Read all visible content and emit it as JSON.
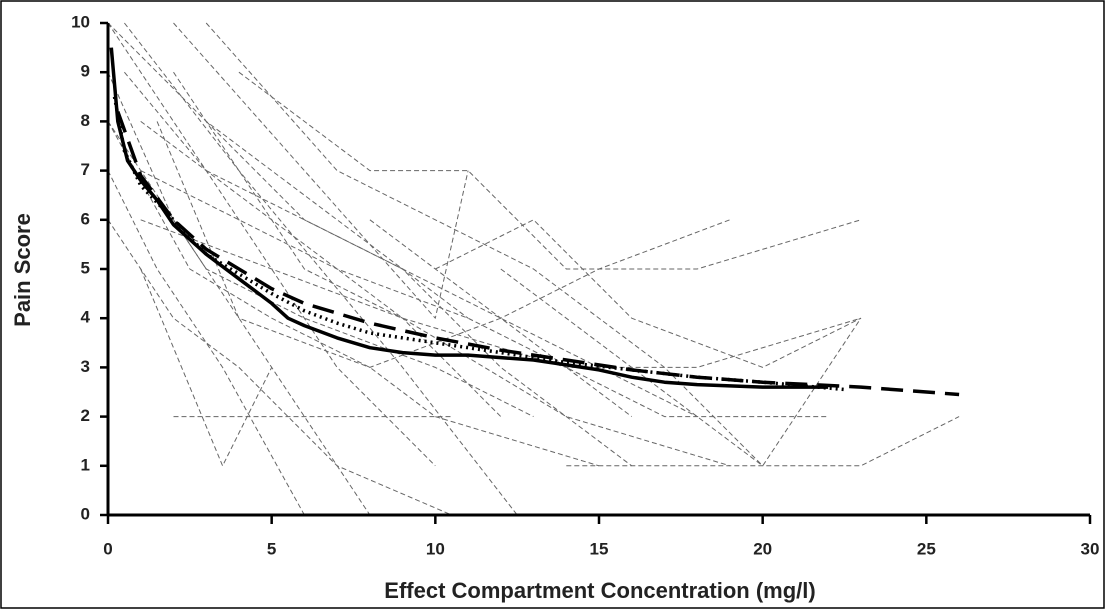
{
  "chart_data": {
    "type": "line",
    "xlabel": "Effect Compartment Concentration (mg/l)",
    "ylabel": "Pain Score",
    "xlim": [
      0,
      30
    ],
    "ylim": [
      0,
      10
    ],
    "xticks": [
      0,
      5,
      10,
      15,
      20,
      25,
      30
    ],
    "yticks": [
      0,
      1,
      2,
      3,
      4,
      5,
      6,
      7,
      8,
      9,
      10
    ],
    "grid": false,
    "series": [
      {
        "style": "dashed",
        "color": "#666666",
        "x": [
          0,
          3,
          7,
          11
        ],
        "values": [
          10,
          8,
          6,
          4
        ]
      },
      {
        "style": "dashed",
        "color": "#666666",
        "x": [
          0.5,
          4,
          9,
          12.5
        ],
        "values": [
          10,
          7,
          3,
          0
        ]
      },
      {
        "style": "dashed",
        "color": "#666666",
        "x": [
          0,
          2,
          5,
          8
        ],
        "values": [
          9,
          6,
          3,
          0
        ]
      },
      {
        "style": "dashed",
        "color": "#666666",
        "x": [
          1,
          5,
          9,
          14,
          19
        ],
        "values": [
          8,
          6,
          4,
          2,
          1
        ]
      },
      {
        "style": "dashed",
        "color": "#666666",
        "x": [
          0,
          3,
          6,
          10,
          13
        ],
        "values": [
          8,
          5,
          4,
          3,
          2
        ]
      },
      {
        "style": "dashed",
        "color": "#666666",
        "x": [
          2,
          6,
          10,
          11
        ],
        "values": [
          10,
          7,
          4,
          7
        ]
      },
      {
        "style": "dashed",
        "color": "#666666",
        "x": [
          0,
          1.5,
          3.5,
          6
        ],
        "values": [
          7,
          5,
          3,
          0
        ]
      },
      {
        "style": "dashed",
        "color": "#666666",
        "x": [
          4,
          8,
          11,
          14,
          18,
          23
        ],
        "values": [
          9,
          7,
          7,
          5,
          5,
          6
        ]
      },
      {
        "style": "dashed",
        "color": "#666666",
        "x": [
          0,
          2,
          4,
          7,
          10.5
        ],
        "values": [
          6,
          4,
          3,
          1,
          0
        ]
      },
      {
        "style": "dashed",
        "color": "#666666",
        "x": [
          1,
          3.5,
          5
        ],
        "values": [
          5,
          1,
          3
        ]
      },
      {
        "style": "dashed",
        "color": "#666666",
        "x": [
          2,
          10.5
        ],
        "values": [
          2,
          2
        ]
      },
      {
        "style": "dashed",
        "color": "#666666",
        "x": [
          14,
          18,
          23,
          26
        ],
        "values": [
          1,
          1,
          1,
          2
        ]
      },
      {
        "style": "dashed",
        "color": "#666666",
        "x": [
          10,
          13,
          16,
          20,
          23
        ],
        "values": [
          5,
          6,
          4,
          3,
          4
        ]
      },
      {
        "style": "dashed",
        "color": "#666666",
        "x": [
          8,
          12,
          15,
          19
        ],
        "values": [
          6,
          4,
          5,
          6
        ]
      },
      {
        "style": "dashed",
        "color": "#666666",
        "x": [
          3,
          6,
          9,
          12,
          15,
          18
        ],
        "values": [
          8,
          6,
          5,
          4,
          3,
          2
        ]
      },
      {
        "style": "dashed",
        "color": "#666666",
        "x": [
          1,
          4,
          7,
          11,
          14,
          17,
          22
        ],
        "values": [
          7,
          6,
          5,
          4,
          3,
          2,
          2
        ]
      },
      {
        "style": "dashed",
        "color": "#666666",
        "x": [
          0.5,
          3,
          6,
          9,
          12,
          16
        ],
        "values": [
          9,
          7,
          6,
          5,
          3,
          1
        ]
      },
      {
        "style": "dashed",
        "color": "#666666",
        "x": [
          0,
          2.5,
          5,
          8,
          10,
          15
        ],
        "values": [
          8,
          5,
          4,
          3,
          2,
          1
        ]
      },
      {
        "style": "dashed",
        "color": "#666666",
        "x": [
          12,
          16,
          20,
          23
        ],
        "values": [
          5,
          3,
          1,
          4
        ]
      },
      {
        "style": "dashed",
        "color": "#666666",
        "x": [
          2,
          4,
          6,
          9,
          12
        ],
        "values": [
          9,
          7,
          5,
          4,
          2
        ]
      },
      {
        "style": "dashed",
        "color": "#666666",
        "x": [
          0,
          4,
          7,
          10
        ],
        "values": [
          10,
          6,
          3,
          1
        ]
      },
      {
        "style": "dashed",
        "color": "#666666",
        "x": [
          1,
          5,
          9,
          14,
          18,
          23
        ],
        "values": [
          6,
          5,
          4,
          3,
          3,
          4
        ]
      },
      {
        "style": "dashed",
        "color": "#666666",
        "x": [
          3,
          7,
          10,
          13,
          17,
          20
        ],
        "values": [
          10,
          7,
          6,
          5,
          3,
          1
        ]
      },
      {
        "style": "dashed",
        "color": "#666666",
        "x": [
          1.5,
          4,
          8,
          12,
          16
        ],
        "values": [
          8,
          4,
          3,
          4,
          2
        ]
      },
      {
        "style": "solid",
        "color": "#000000",
        "x": [
          0.1,
          0.3,
          0.6,
          1,
          1.5,
          2,
          3,
          4,
          5,
          5.5,
          6,
          7,
          8,
          9,
          10,
          11,
          12,
          13,
          14,
          15,
          16,
          17,
          18,
          20,
          22
        ],
        "values": [
          9.5,
          8,
          7.2,
          6.8,
          6.4,
          5.9,
          5.3,
          4.8,
          4.3,
          4.0,
          3.85,
          3.6,
          3.4,
          3.3,
          3.25,
          3.25,
          3.2,
          3.15,
          3.05,
          2.95,
          2.8,
          2.7,
          2.65,
          2.6,
          2.6
        ]
      },
      {
        "style": "dotted",
        "color": "#000000",
        "x": [
          0.2,
          0.5,
          1,
          2,
          3,
          4,
          5,
          6,
          7,
          8,
          10,
          12,
          14,
          16,
          18,
          20,
          22.5
        ],
        "values": [
          8.5,
          7.4,
          6.7,
          6.0,
          5.3,
          4.9,
          4.5,
          4.15,
          3.9,
          3.7,
          3.5,
          3.3,
          3.1,
          2.95,
          2.8,
          2.7,
          2.55
        ]
      },
      {
        "style": "long-dashed",
        "color": "#000000",
        "x": [
          0.3,
          1,
          2,
          3,
          4,
          5,
          6,
          8,
          10,
          12,
          14,
          16,
          18,
          20,
          23,
          26
        ],
        "values": [
          8.2,
          6.9,
          6.0,
          5.4,
          5.0,
          4.6,
          4.3,
          3.9,
          3.6,
          3.35,
          3.15,
          2.95,
          2.8,
          2.7,
          2.6,
          2.45
        ]
      }
    ]
  }
}
